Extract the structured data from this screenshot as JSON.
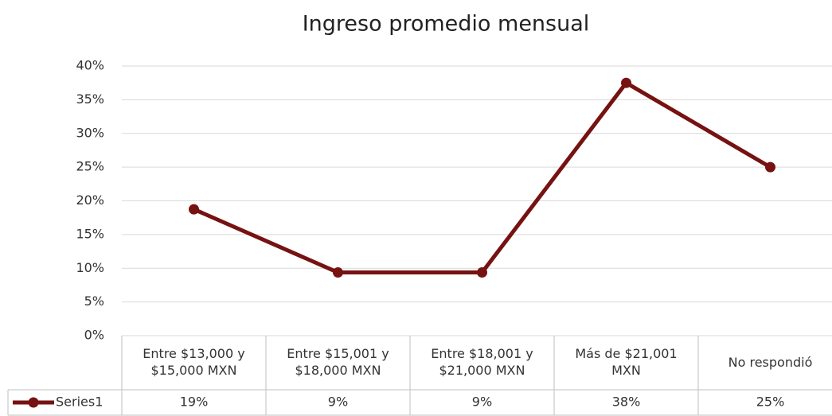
{
  "chart_data": {
    "type": "line",
    "title": "Ingreso promedio mensual",
    "categories": [
      "Entre $13,000 y $15,000 MXN",
      "Entre $15,001 y $18,000 MXN",
      "Entre $18,001 y $21,000 MXN",
      "Más de $21,001 MXN",
      "No respondió"
    ],
    "series": [
      {
        "name": "Series1",
        "color": "#761212",
        "values": [
          18.75,
          9.375,
          9.375,
          37.5,
          25
        ],
        "value_labels": [
          "19%",
          "9%",
          "9%",
          "38%",
          "25%"
        ]
      }
    ],
    "ylim": [
      0,
      40
    ],
    "yticks": [
      {
        "value": 0,
        "label": "0%"
      },
      {
        "value": 5,
        "label": "5%"
      },
      {
        "value": 10,
        "label": "10%"
      },
      {
        "value": 15,
        "label": "15%"
      },
      {
        "value": 20,
        "label": "20%"
      },
      {
        "value": 25,
        "label": "25%"
      },
      {
        "value": 30,
        "label": "30%"
      },
      {
        "value": 35,
        "label": "35%"
      },
      {
        "value": 40,
        "label": "40%"
      }
    ],
    "grid": true
  }
}
